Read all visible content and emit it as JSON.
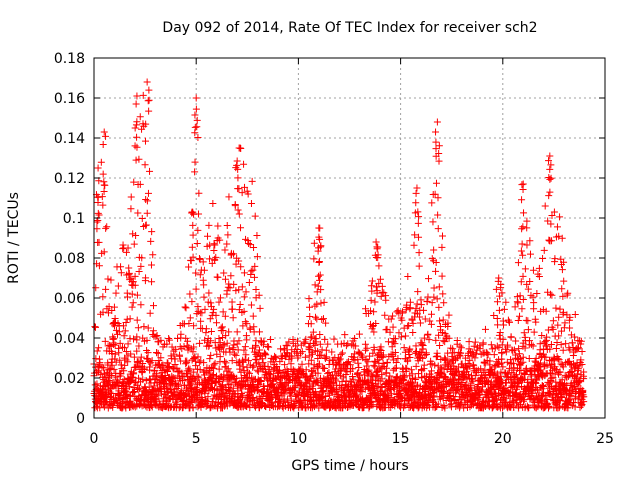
{
  "chart_data": {
    "type": "scatter",
    "title": "Day 092 of 2014, Rate Of TEC Index for receiver sch2",
    "xlabel": "GPS time / hours",
    "ylabel": "ROTI / TECUs",
    "xlim": [
      0,
      25
    ],
    "ylim": [
      0,
      0.18
    ],
    "x_ticks": [
      0,
      5,
      10,
      15,
      20,
      25
    ],
    "x_tick_labels": [
      "0",
      "5",
      "10",
      "15",
      "20",
      "25"
    ],
    "y_ticks": [
      0,
      0.02,
      0.04,
      0.06,
      0.08,
      0.1,
      0.12,
      0.14,
      0.16,
      0.18
    ],
    "y_tick_labels": [
      "0",
      "0.02",
      "0.04",
      "0.06",
      "0.08",
      "0.1",
      "0.12",
      "0.14",
      "0.16",
      "0.18"
    ],
    "grid": true,
    "marker": "+",
    "color": "#ff0000",
    "data_time_range": [
      0,
      23.95
    ],
    "baseline_range": [
      0.005,
      0.03
    ],
    "activity_envelope": [
      [
        0.0,
        0.035
      ],
      [
        0.2,
        0.125
      ],
      [
        0.5,
        0.14
      ],
      [
        0.9,
        0.06
      ],
      [
        1.3,
        0.095
      ],
      [
        1.6,
        0.09
      ],
      [
        2.1,
        0.16
      ],
      [
        2.6,
        0.168
      ],
      [
        3.0,
        0.05
      ],
      [
        3.5,
        0.03
      ],
      [
        4.0,
        0.04
      ],
      [
        4.5,
        0.06
      ],
      [
        4.8,
        0.1
      ],
      [
        5.0,
        0.16
      ],
      [
        5.3,
        0.08
      ],
      [
        5.8,
        0.115
      ],
      [
        6.3,
        0.08
      ],
      [
        6.8,
        0.135
      ],
      [
        7.3,
        0.135
      ],
      [
        7.8,
        0.125
      ],
      [
        8.3,
        0.04
      ],
      [
        9.0,
        0.035
      ],
      [
        9.8,
        0.04
      ],
      [
        10.3,
        0.04
      ],
      [
        10.7,
        0.085
      ],
      [
        11.0,
        0.095
      ],
      [
        11.5,
        0.03
      ],
      [
        12.3,
        0.045
      ],
      [
        13.0,
        0.04
      ],
      [
        13.8,
        0.088
      ],
      [
        14.5,
        0.05
      ],
      [
        15.2,
        0.06
      ],
      [
        15.8,
        0.115
      ],
      [
        16.3,
        0.08
      ],
      [
        16.8,
        0.148
      ],
      [
        17.2,
        0.06
      ],
      [
        18.0,
        0.03
      ],
      [
        19.0,
        0.04
      ],
      [
        19.8,
        0.07
      ],
      [
        20.5,
        0.045
      ],
      [
        21.0,
        0.115
      ],
      [
        21.6,
        0.065
      ],
      [
        22.3,
        0.13
      ],
      [
        22.8,
        0.1
      ],
      [
        23.3,
        0.06
      ],
      [
        23.9,
        0.04
      ]
    ],
    "notable_points": [
      {
        "x": 2.6,
        "y": 0.168
      },
      {
        "x": 2.1,
        "y": 0.161
      },
      {
        "x": 5.0,
        "y": 0.16
      },
      {
        "x": 16.8,
        "y": 0.148
      },
      {
        "x": 0.5,
        "y": 0.143
      },
      {
        "x": 7.1,
        "y": 0.135
      },
      {
        "x": 22.3,
        "y": 0.131
      },
      {
        "x": 0.2,
        "y": 0.125
      },
      {
        "x": 21.0,
        "y": 0.117
      },
      {
        "x": 15.8,
        "y": 0.115
      },
      {
        "x": 4.8,
        "y": 0.103
      },
      {
        "x": 11.0,
        "y": 0.095
      },
      {
        "x": 13.8,
        "y": 0.088
      },
      {
        "x": 19.8,
        "y": 0.07
      }
    ]
  }
}
